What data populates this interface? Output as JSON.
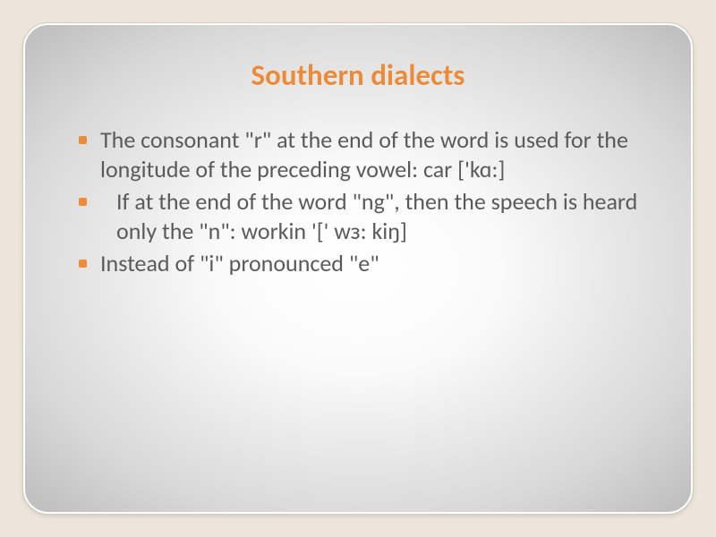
{
  "slide": {
    "title": "Southern dialects",
    "bullets": [
      "The consonant \"r\" at the end of the word is used for the longitude of the preceding vowel: car ['kɑ:]",
      "  If at the end of the word \"ng\", then the speech is heard only the \"n\": workin '[' wɜ: kiŋ]",
      "Instead of \"i\" pronounced \"e\""
    ]
  },
  "style": {
    "background_color": "#ebe5db",
    "card_border_radius": 28,
    "title_color": "#ec8b3a",
    "title_fontsize": 33,
    "body_text_color": "#5a5a5a",
    "body_fontsize": 26,
    "bullet_color": "#ec8b3a",
    "bullet_size": 9,
    "gradient_inner": "#ffffff",
    "gradient_outer": "#bcbcbc"
  }
}
